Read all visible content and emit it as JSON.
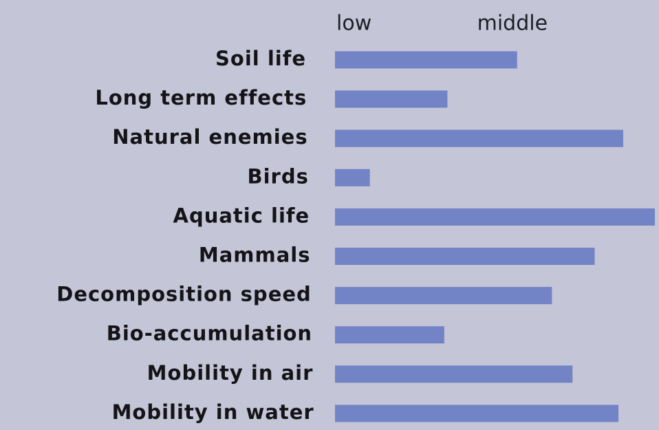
{
  "chart_data": {
    "type": "bar",
    "orientation": "horizontal",
    "categories": [
      "Soil life",
      "Long term effects",
      "Natural enemies",
      "Birds",
      "Aquatic life",
      "Mammals",
      "Decomposition speed",
      "Bio-accumulation",
      "Mobility in air",
      "Mobility in water"
    ],
    "values": [
      2.03,
      1.59,
      2.7,
      1.1,
      2.9,
      2.52,
      2.25,
      1.57,
      2.38,
      2.67
    ],
    "color": "#7283c6",
    "xlim": [
      0.88,
      2.9
    ],
    "xticks": [
      {
        "value": 1,
        "label": "low"
      },
      {
        "value": 2,
        "label": "middle"
      }
    ]
  }
}
